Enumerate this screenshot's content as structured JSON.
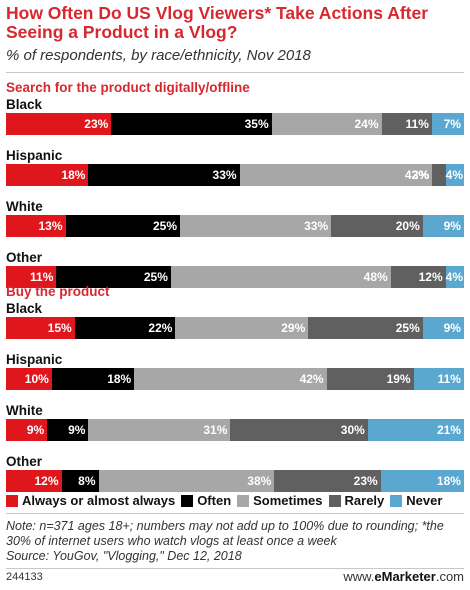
{
  "title": "How Often Do US Vlog Viewers* Take Actions After Seeing a Product in a Vlog?",
  "subtitle": "% of respondents, by race/ethnicity, Nov 2018",
  "colors": {
    "always": "#e0161d",
    "often": "#000000",
    "sometimes": "#a7a7a7",
    "rarely": "#606060",
    "never": "#5aa7d0"
  },
  "chart_data": {
    "type": "bar",
    "stacked": true,
    "orientation": "horizontal",
    "unit": "%",
    "legend_placement": "bottom",
    "series_names": [
      "Always or almost always",
      "Often",
      "Sometimes",
      "Rarely",
      "Never"
    ],
    "sections": [
      {
        "label": "Search for the product digitally/offline",
        "groups": [
          {
            "name": "Black",
            "values": [
              23,
              35,
              24,
              11,
              7
            ]
          },
          {
            "name": "Hispanic",
            "values": [
              18,
              33,
              42,
              3,
              4
            ]
          },
          {
            "name": "White",
            "values": [
              13,
              25,
              33,
              20,
              9
            ]
          },
          {
            "name": "Other",
            "values": [
              11,
              25,
              48,
              12,
              4
            ]
          }
        ]
      },
      {
        "label": "Buy the product",
        "groups": [
          {
            "name": "Black",
            "values": [
              15,
              22,
              29,
              25,
              9
            ]
          },
          {
            "name": "Hispanic",
            "values": [
              10,
              18,
              42,
              19,
              11
            ]
          },
          {
            "name": "White",
            "values": [
              9,
              9,
              31,
              30,
              21
            ]
          },
          {
            "name": "Other",
            "values": [
              12,
              8,
              38,
              23,
              18
            ]
          }
        ]
      }
    ]
  },
  "note": "Note: n=371 ages 18+; numbers may not add up to 100% due to rounding; *the 30% of internet users who watch vlogs at least once a week",
  "source": "Source: YouGov, \"Vlogging,\" Dec 12, 2018",
  "chart_id": "244133",
  "brand_prefix": "www.",
  "brand_name": "eMarketer",
  "brand_suffix": ".com"
}
